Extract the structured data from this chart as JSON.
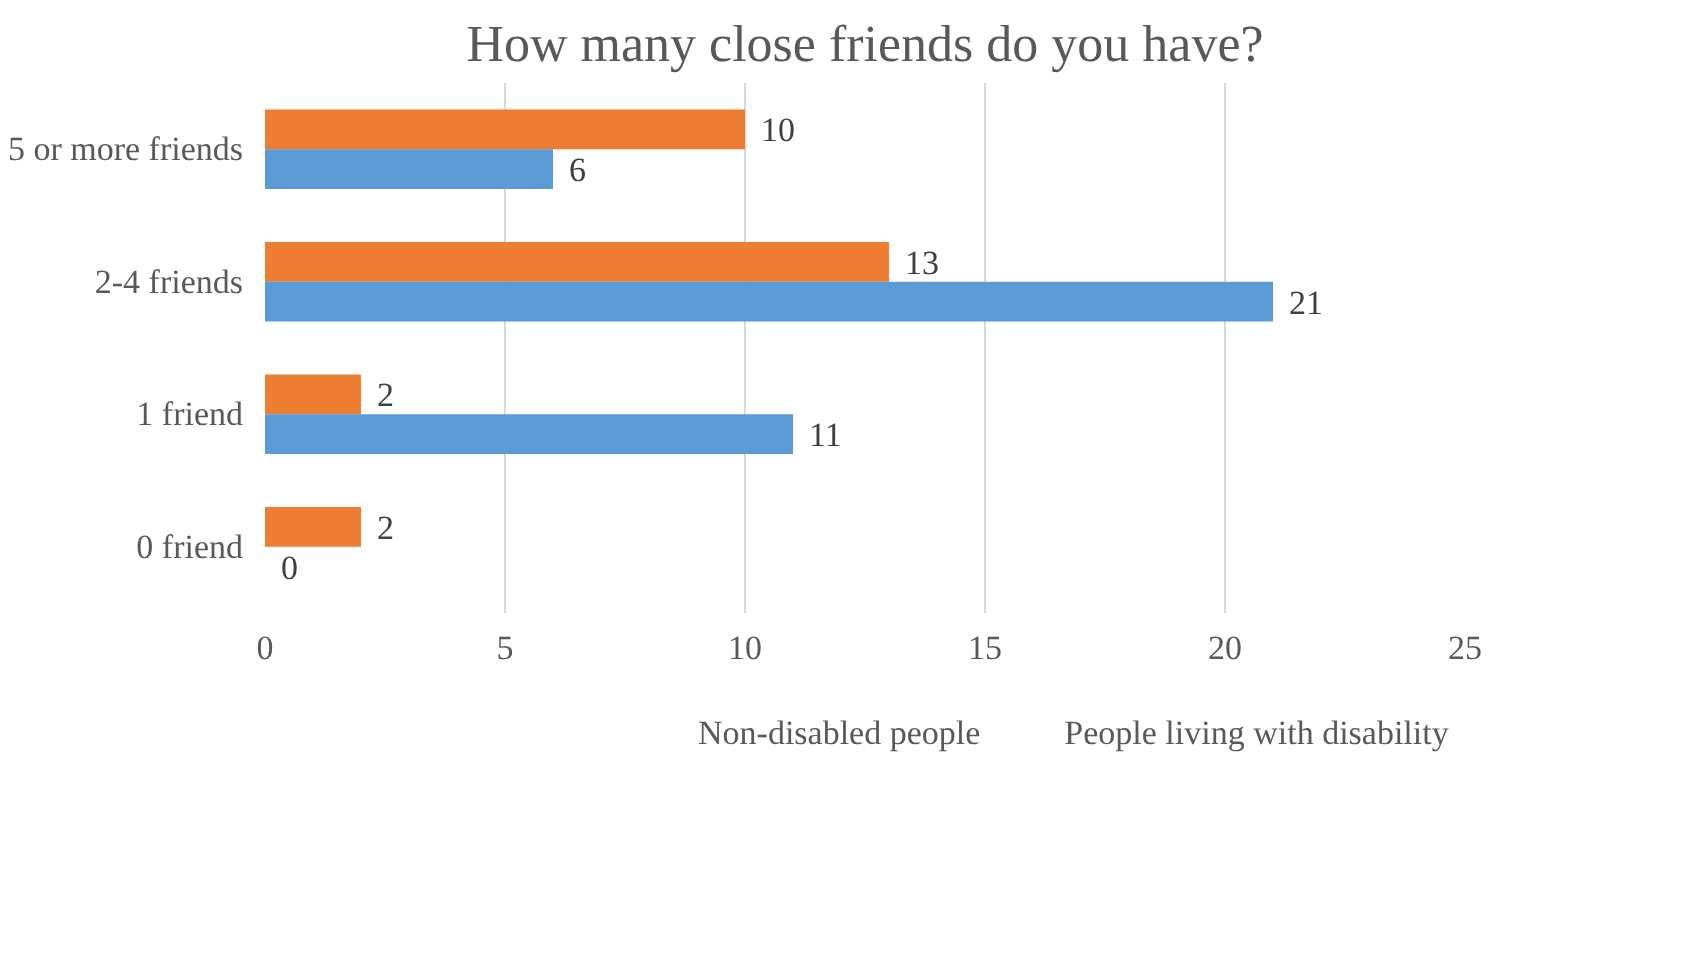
{
  "chart_data": {
    "type": "bar",
    "orientation": "horizontal",
    "title": "How many close friends do you have?",
    "categories": [
      "5 or more friends",
      "2-4 friends",
      "1 friend",
      "0 friend"
    ],
    "series": [
      {
        "name": "Non-disabled people",
        "color": "#ed7d31",
        "values": [
          10,
          13,
          2,
          2
        ]
      },
      {
        "name": "People living with disability",
        "color": "#5b9bd5",
        "values": [
          6,
          21,
          11,
          0
        ]
      }
    ],
    "xlim": [
      0,
      25
    ],
    "xticks": [
      0,
      5,
      10,
      15,
      20,
      25
    ],
    "grid": "x",
    "legend": "bottom",
    "data_labels": true
  }
}
